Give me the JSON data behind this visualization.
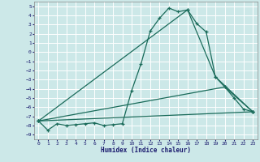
{
  "title": "",
  "xlabel": "Humidex (Indice chaleur)",
  "background_color": "#cce8e8",
  "grid_color": "#ffffff",
  "line_color": "#1a6b5a",
  "xlim": [
    -0.5,
    23.5
  ],
  "ylim": [
    -9.5,
    5.5
  ],
  "xticks": [
    0,
    1,
    2,
    3,
    4,
    5,
    6,
    7,
    8,
    9,
    10,
    11,
    12,
    13,
    14,
    15,
    16,
    17,
    18,
    19,
    20,
    21,
    22,
    23
  ],
  "yticks": [
    5,
    4,
    3,
    2,
    1,
    0,
    -1,
    -2,
    -3,
    -4,
    -5,
    -6,
    -7,
    -8,
    -9
  ],
  "series1": [
    [
      0,
      -7.5
    ],
    [
      1,
      -8.5
    ],
    [
      2,
      -7.8
    ],
    [
      3,
      -8.0
    ],
    [
      4,
      -7.9
    ],
    [
      5,
      -7.8
    ],
    [
      6,
      -7.7
    ],
    [
      7,
      -8.0
    ],
    [
      8,
      -7.9
    ],
    [
      9,
      -7.8
    ],
    [
      10,
      -4.2
    ],
    [
      11,
      -1.3
    ],
    [
      12,
      2.3
    ],
    [
      13,
      3.7
    ],
    [
      14,
      4.8
    ],
    [
      15,
      4.4
    ],
    [
      16,
      4.6
    ],
    [
      17,
      3.1
    ],
    [
      18,
      2.2
    ],
    [
      19,
      -2.7
    ],
    [
      20,
      -3.8
    ],
    [
      21,
      -5.0
    ],
    [
      22,
      -6.2
    ],
    [
      23,
      -6.5
    ]
  ],
  "series2": [
    [
      0,
      -7.5
    ],
    [
      23,
      -6.5
    ]
  ],
  "series3": [
    [
      0,
      -7.5
    ],
    [
      20,
      -3.8
    ],
    [
      23,
      -6.5
    ]
  ],
  "series4": [
    [
      0,
      -7.5
    ],
    [
      16,
      4.6
    ],
    [
      19,
      -2.7
    ],
    [
      23,
      -6.5
    ]
  ]
}
